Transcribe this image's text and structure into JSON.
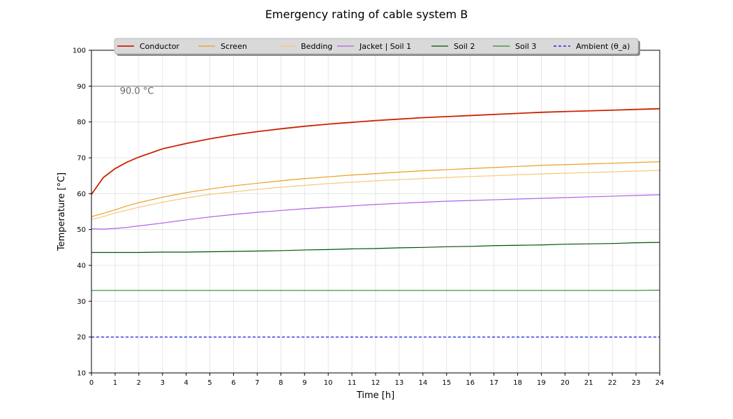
{
  "chart_data": {
    "type": "line",
    "title": "Emergency rating of cable system B",
    "xlabel": "Time [h]",
    "ylabel": "Temperature [°C]",
    "xlim": [
      0,
      24
    ],
    "ylim": [
      10,
      100
    ],
    "x_ticks": [
      "0",
      "1",
      "2",
      "3",
      "4",
      "5",
      "6",
      "7",
      "8",
      "9",
      "10",
      "11",
      "12",
      "13",
      "14",
      "15",
      "16",
      "17",
      "18",
      "19",
      "20",
      "21",
      "22",
      "23",
      "24"
    ],
    "y_ticks": [
      "10",
      "20",
      "30",
      "40",
      "50",
      "60",
      "70",
      "80",
      "90",
      "100"
    ],
    "grid": true,
    "legend_position": "top-center",
    "reference_line": {
      "value": 90,
      "label": "90.0 °C",
      "color": "#808080"
    },
    "x": [
      0,
      0.5,
      1,
      1.5,
      2,
      3,
      4,
      5,
      6,
      7,
      8,
      9,
      10,
      11,
      12,
      13,
      14,
      15,
      16,
      17,
      18,
      19,
      20,
      21,
      22,
      23,
      24
    ],
    "series": [
      {
        "name": "Conductor",
        "color": "#cc2200",
        "style": "solid",
        "values": [
          59.8,
          64.5,
          67.0,
          68.8,
          70.2,
          72.5,
          74.0,
          75.3,
          76.4,
          77.3,
          78.1,
          78.8,
          79.4,
          79.9,
          80.4,
          80.8,
          81.2,
          81.5,
          81.8,
          82.1,
          82.4,
          82.7,
          82.9,
          83.1,
          83.3,
          83.5,
          83.7
        ]
      },
      {
        "name": "Screen",
        "color": "#e8a020",
        "style": "solid",
        "values": [
          53.6,
          54.5,
          55.5,
          56.6,
          57.5,
          59.0,
          60.3,
          61.3,
          62.2,
          62.9,
          63.6,
          64.2,
          64.7,
          65.2,
          65.6,
          66.0,
          66.4,
          66.7,
          67.0,
          67.3,
          67.6,
          67.9,
          68.1,
          68.3,
          68.5,
          68.7,
          68.9
        ]
      },
      {
        "name": "Bedding",
        "color": "#f5c878",
        "style": "solid",
        "values": [
          52.8,
          53.6,
          54.6,
          55.4,
          56.2,
          57.6,
          58.8,
          59.8,
          60.5,
          61.2,
          61.8,
          62.3,
          62.8,
          63.2,
          63.6,
          63.9,
          64.2,
          64.5,
          64.8,
          65.0,
          65.3,
          65.5,
          65.7,
          65.9,
          66.1,
          66.3,
          66.5
        ]
      },
      {
        "name": "Jacket | Soil 1",
        "color": "#b45ee8",
        "style": "solid",
        "values": [
          50.2,
          50.1,
          50.3,
          50.6,
          51.0,
          51.8,
          52.7,
          53.5,
          54.2,
          54.8,
          55.3,
          55.8,
          56.2,
          56.6,
          57.0,
          57.3,
          57.6,
          57.9,
          58.1,
          58.3,
          58.5,
          58.7,
          58.9,
          59.1,
          59.3,
          59.5,
          59.7
        ]
      },
      {
        "name": "Soil 2",
        "color": "#005500",
        "style": "solid",
        "values": [
          43.6,
          43.6,
          43.6,
          43.6,
          43.6,
          43.7,
          43.7,
          43.8,
          43.9,
          44.0,
          44.1,
          44.3,
          44.4,
          44.6,
          44.7,
          44.9,
          45.0,
          45.2,
          45.3,
          45.5,
          45.6,
          45.7,
          45.9,
          46.0,
          46.1,
          46.3,
          46.4
        ]
      },
      {
        "name": "Soil 3",
        "color": "#2a8a2a",
        "style": "solid",
        "values": [
          33.0,
          33.0,
          33.0,
          33.0,
          33.0,
          33.0,
          33.0,
          33.0,
          33.0,
          33.0,
          33.0,
          33.0,
          33.0,
          33.0,
          33.0,
          33.0,
          33.0,
          33.0,
          33.0,
          33.0,
          33.0,
          33.0,
          33.0,
          33.0,
          33.0,
          33.0,
          33.1
        ]
      },
      {
        "name": "Ambient (θ_a)",
        "color": "#0000ee",
        "style": "dashed",
        "values": [
          20.0,
          20.0,
          20.0,
          20.0,
          20.0,
          20.0,
          20.0,
          20.0,
          20.0,
          20.0,
          20.0,
          20.0,
          20.0,
          20.0,
          20.0,
          20.0,
          20.0,
          20.0,
          20.0,
          20.0,
          20.0,
          20.0,
          20.0,
          20.0,
          20.0,
          20.0,
          20.0
        ]
      }
    ]
  }
}
